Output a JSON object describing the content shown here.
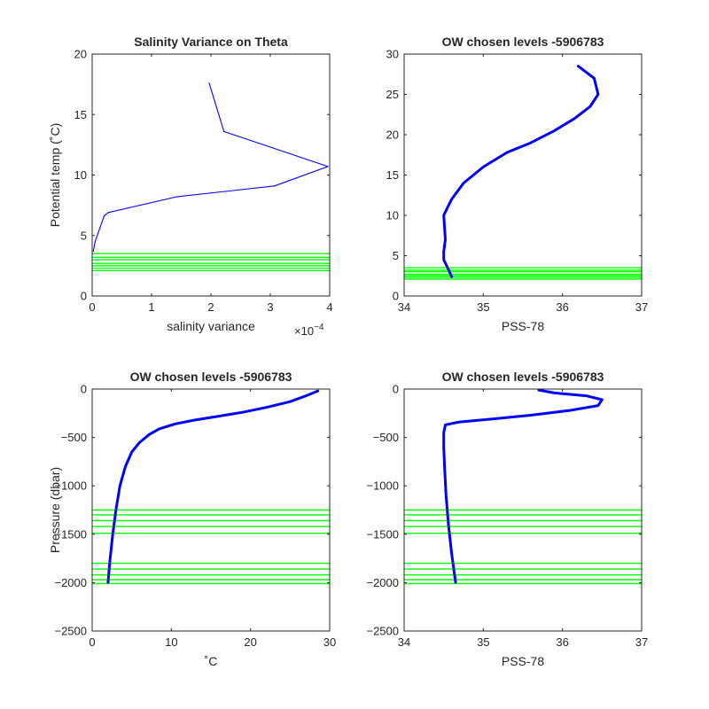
{
  "chart_data": [
    {
      "type": "line",
      "title": "Salinity Variance on Theta",
      "xlabel": "salinity variance",
      "ylabel": "Potential temp (˚C)",
      "xlim": [
        0,
        4
      ],
      "ylim": [
        0,
        20
      ],
      "x_exponent_label": "×10",
      "x_exponent_power": "-4",
      "xticks": [
        0,
        1,
        2,
        3,
        4
      ],
      "yticks": [
        0,
        5,
        10,
        15,
        20
      ],
      "series": [
        {
          "color": "#0000ff",
          "x": [
            1.97,
            2.22,
            3.97,
            3.07,
            1.42,
            0.27,
            0.2,
            0.05,
            0.02
          ],
          "y": [
            17.6,
            13.6,
            10.7,
            9.1,
            8.2,
            6.9,
            6.6,
            4.5,
            3.7
          ]
        }
      ],
      "hlines": {
        "color": "#00ff00",
        "values": [
          2.1,
          2.3,
          2.5,
          2.7,
          3.0,
          3.2,
          3.5
        ]
      }
    },
    {
      "type": "line",
      "title": "OW chosen levels -5906783",
      "xlabel": "PSS-78",
      "ylabel": "",
      "xlim": [
        34,
        37
      ],
      "ylim": [
        0,
        30
      ],
      "xticks": [
        34,
        35,
        36,
        37
      ],
      "yticks": [
        0,
        5,
        10,
        15,
        20,
        25,
        30
      ],
      "series": [
        {
          "color": "#0000ff",
          "x": [
            34.6,
            34.55,
            34.5,
            34.5,
            34.52,
            34.5,
            34.55,
            34.6,
            34.75,
            35.0,
            35.3,
            35.6,
            35.9,
            36.15,
            36.35,
            36.45,
            36.4,
            36.2
          ],
          "y": [
            2.4,
            3.5,
            4.5,
            5.5,
            7.0,
            10.0,
            11.0,
            12.0,
            14.0,
            16.0,
            17.8,
            19.0,
            20.5,
            22.0,
            23.5,
            25.0,
            27.0,
            28.5
          ]
        }
      ],
      "hlines": {
        "color": "#00ff00",
        "values": [
          2.1,
          2.3,
          2.5,
          2.7,
          3.0,
          3.2,
          3.5
        ]
      }
    },
    {
      "type": "line",
      "title": "OW chosen levels -5906783",
      "xlabel": "˚C",
      "ylabel": "Pressure (dbar)",
      "xlim": [
        0,
        30
      ],
      "ylim": [
        -2500,
        0
      ],
      "xticks": [
        0,
        10,
        20,
        30
      ],
      "yticks": [
        -2500,
        -2000,
        -1500,
        -1000,
        -500,
        0
      ],
      "series": [
        {
          "color": "#0000ff",
          "x": [
            2.0,
            2.2,
            2.6,
            3.0,
            3.5,
            4.2,
            5.0,
            6.0,
            7.2,
            8.5,
            10.5,
            13.0,
            16.0,
            19.0,
            22.0,
            25.0,
            27.0,
            28.5
          ],
          "y": [
            -2000,
            -1800,
            -1500,
            -1250,
            -1000,
            -800,
            -650,
            -550,
            -470,
            -410,
            -360,
            -320,
            -280,
            -240,
            -190,
            -130,
            -70,
            -20
          ]
        }
      ],
      "hlines": {
        "color": "#00ff00",
        "values": [
          -1250,
          -1300,
          -1360,
          -1420,
          -1490,
          -1800,
          -1860,
          -1920,
          -1970,
          -2010
        ]
      }
    },
    {
      "type": "line",
      "title": "OW chosen levels -5906783",
      "xlabel": "PSS-78",
      "ylabel": "",
      "xlim": [
        34,
        37
      ],
      "ylim": [
        -2500,
        0
      ],
      "xticks": [
        34,
        35,
        36,
        37
      ],
      "yticks": [
        -2500,
        -2000,
        -1500,
        -1000,
        -500,
        0
      ],
      "series": [
        {
          "color": "#0000ff",
          "x": [
            34.65,
            34.6,
            34.56,
            34.53,
            34.51,
            34.5,
            34.5,
            34.52,
            34.7,
            35.1,
            35.6,
            36.1,
            36.45,
            36.5,
            36.3,
            35.9,
            35.7
          ],
          "y": [
            -2000,
            -1700,
            -1400,
            -1100,
            -800,
            -600,
            -450,
            -370,
            -340,
            -310,
            -270,
            -220,
            -170,
            -110,
            -70,
            -40,
            -10
          ]
        }
      ],
      "hlines": {
        "color": "#00ff00",
        "values": [
          -1250,
          -1300,
          -1360,
          -1420,
          -1490,
          -1800,
          -1860,
          -1920,
          -1970,
          -2010
        ]
      }
    }
  ]
}
